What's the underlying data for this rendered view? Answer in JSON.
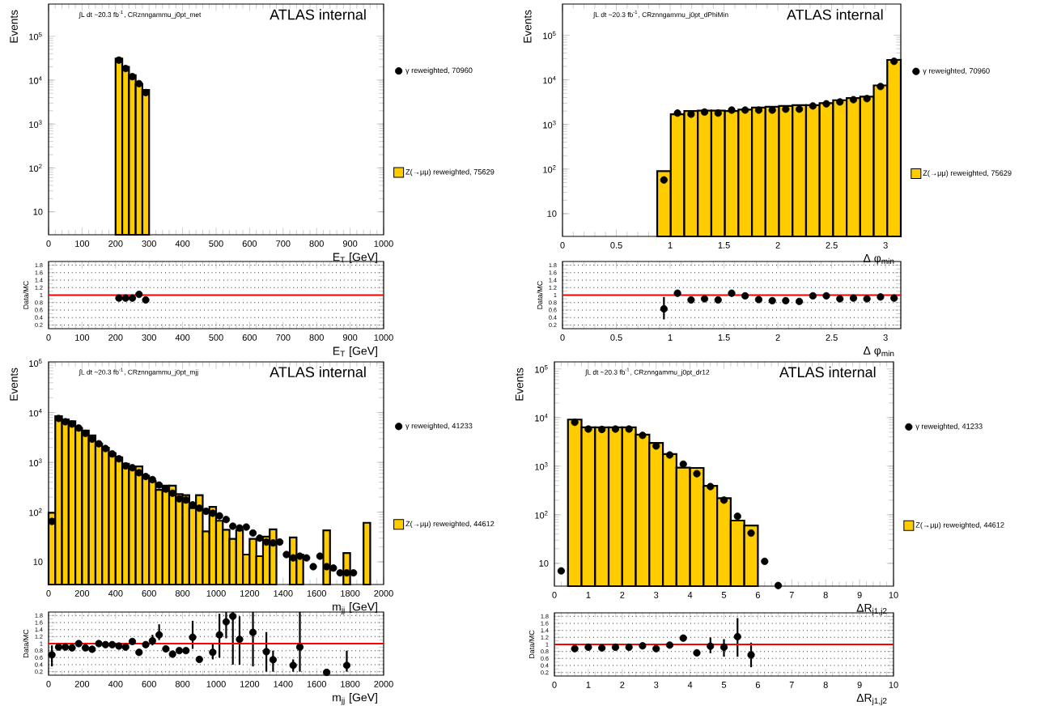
{
  "chart_data": [
    {
      "type": "histogram",
      "annotations": [
        "∫L dt ~20.3 fb$^{-1}$, CRznngammu_j0pt_met",
        "ATLAS internal"
      ],
      "xlabel": "E$_{T}$ [GeV]",
      "ylabel": "Events",
      "log": "y",
      "legend": "right",
      "marker": "circle",
      "xlim": [
        0,
        1000
      ],
      "ylim": [
        3,
        540000
      ],
      "xticks": [
        0,
        100,
        200,
        300,
        400,
        500,
        600,
        700,
        800,
        900,
        1000
      ],
      "yticks": [
        10,
        {
          "value": 100,
          "label": "10$^{2}$"
        },
        {
          "value": 1000,
          "label": "10$^{3}$"
        },
        {
          "value": 10000,
          "label": "10$^{4}$"
        },
        {
          "value": 100000,
          "label": "10$^{5}$"
        }
      ],
      "bins": [
        200,
        220,
        240,
        260,
        280,
        300
      ],
      "series": [
        {
          "type": "histogram",
          "name": "Z(→μμ) reweighted, 75629",
          "color": "#ffcc00",
          "values": [
            31000,
            20000,
            13000,
            8100,
            6000
          ]
        },
        {
          "type": "scatter",
          "name": "γ reweighted, 70960",
          "color": "#000000",
          "x": [
            210,
            230,
            250,
            270,
            290
          ],
          "values": [
            28500,
            18400,
            12000,
            8300,
            5200
          ]
        }
      ]
    },
    {
      "type": "histogram",
      "annotations": [
        "∫L dt ~20.3 fb$^{-1}$, CRznngammu_j0pt_dPhiMin",
        "ATLAS internal"
      ],
      "xlabel": "Δ φ$_{min}$",
      "ylabel": "Events",
      "log": "y",
      "legend": "right",
      "marker": "circle",
      "xlim": [
        0,
        3.1416
      ],
      "ylim": [
        3.1,
        500000
      ],
      "xticks": [
        0,
        0.5,
        1,
        1.5,
        2,
        2.5,
        3
      ],
      "yticks": [
        10,
        {
          "value": 100,
          "label": "10$^{2}$"
        },
        {
          "value": 1000,
          "label": "10$^{3}$"
        },
        {
          "value": 10000,
          "label": "10$^{4}$"
        },
        {
          "value": 100000,
          "label": "10$^{5}$"
        }
      ],
      "bins": [
        0.8796,
        1.0053,
        1.131,
        1.2566,
        1.3823,
        1.508,
        1.6336,
        1.7593,
        1.885,
        2.0106,
        2.1363,
        2.2619,
        2.3876,
        2.5133,
        2.6389,
        2.7646,
        2.8903,
        3.0159,
        3.1416
      ],
      "series": [
        {
          "type": "histogram",
          "name": "Z(→μμ) reweighted, 75629",
          "color": "#ffcc00",
          "values": [
            90,
            1700,
            2000,
            2050,
            2050,
            2000,
            2150,
            2400,
            2500,
            2600,
            2700,
            2700,
            3000,
            3500,
            3900,
            4200,
            7500,
            28000
          ]
        },
        {
          "type": "scatter",
          "name": "γ reweighted, 70960",
          "color": "#000000",
          "x": [
            0.942,
            1.068,
            1.194,
            1.319,
            1.445,
            1.571,
            1.696,
            1.822,
            1.948,
            2.073,
            2.199,
            2.325,
            2.45,
            2.576,
            2.702,
            2.827,
            2.953,
            3.079
          ],
          "values": [
            57,
            1800,
            1700,
            1900,
            1800,
            2100,
            2100,
            2100,
            2100,
            2200,
            2200,
            2600,
            2900,
            3200,
            3600,
            3800,
            7100,
            26000
          ]
        }
      ]
    },
    {
      "type": "scatter",
      "xlabel": "E$_{T}$ [GeV]",
      "ylabel": "Data/MC",
      "marker": "circle",
      "grid": "y",
      "color": "#000000",
      "xlim": [
        0,
        1000
      ],
      "ylim": [
        0.1,
        1.9
      ],
      "xticks": [
        0,
        100,
        200,
        300,
        400,
        500,
        600,
        700,
        800,
        900,
        1000
      ],
      "yticks": [
        0.2,
        0.4,
        0.6,
        0.8,
        1,
        1.2,
        1.4,
        1.6,
        1.8
      ],
      "ref_lines": [
        {
          "axis": "y",
          "value": 1,
          "color": "#ff0000"
        }
      ],
      "x": [
        210,
        230,
        250,
        270,
        290
      ],
      "values": [
        0.92,
        0.92,
        0.92,
        1.02,
        0.87
      ]
    },
    {
      "type": "scatter",
      "xlabel": "Δ φ$_{min}$",
      "ylabel": "Data/MC",
      "marker": "circle",
      "grid": "y",
      "color": "#000000",
      "xlim": [
        0,
        3.1416
      ],
      "ylim": [
        0.1,
        1.9
      ],
      "xticks": [
        0,
        0.5,
        1,
        1.5,
        2,
        2.5,
        3
      ],
      "yticks": [
        0.2,
        0.4,
        0.6,
        0.8,
        1,
        1.2,
        1.4,
        1.6,
        1.8
      ],
      "ref_lines": [
        {
          "axis": "y",
          "value": 1,
          "color": "#ff0000"
        }
      ],
      "x": [
        0.942,
        1.068,
        1.194,
        1.319,
        1.445,
        1.571,
        1.696,
        1.822,
        1.948,
        2.073,
        2.199,
        2.325,
        2.45,
        2.576,
        2.702,
        2.827,
        2.953,
        3.079
      ],
      "values": [
        0.63,
        1.05,
        0.87,
        0.9,
        0.87,
        1.05,
        0.98,
        0.88,
        0.85,
        0.85,
        0.83,
        0.98,
        0.98,
        0.9,
        0.92,
        0.9,
        0.95,
        0.92
      ],
      "errors": [
        [
          0.35,
          0.95
        ],
        null,
        null,
        null,
        null,
        null,
        null,
        null,
        null,
        null,
        null,
        null,
        null,
        null,
        null,
        null,
        null,
        null
      ]
    },
    {
      "type": "histogram",
      "annotations": [
        "∫L dt ~20.3 fb$^{-1}$, CRznngammu_j0pt_mjj",
        "ATLAS internal"
      ],
      "xlabel": "m$_{jj}$ [GeV]",
      "ylabel": "Events",
      "log": "y",
      "legend": "right",
      "marker": "circle",
      "xlim": [
        0,
        2000
      ],
      "ylim": [
        3.5,
        105000
      ],
      "xticks": [
        0,
        200,
        400,
        600,
        800,
        1000,
        1200,
        1400,
        1600,
        1800,
        2000
      ],
      "yticks": [
        10,
        {
          "value": 100,
          "label": "10$^{2}$"
        },
        {
          "value": 1000,
          "label": "10$^{3}$"
        },
        {
          "value": 10000,
          "label": "10$^{4}$"
        },
        {
          "value": 100000,
          "label": "10$^{5}$"
        }
      ],
      "bins": [
        0,
        40,
        80,
        120,
        160,
        200,
        240,
        280,
        320,
        360,
        400,
        440,
        480,
        520,
        560,
        600,
        640,
        680,
        720,
        760,
        800,
        840,
        880,
        920,
        960,
        1000,
        1040,
        1080,
        1120,
        1160,
        1200,
        1240,
        1280,
        1320,
        1360,
        1400,
        1440,
        1480,
        1520,
        1560,
        1600,
        1640,
        1680,
        1720,
        1760,
        1800,
        1840,
        1880,
        1920,
        1960,
        2000
      ],
      "series": [
        {
          "type": "histogram",
          "name": "Z(→μμ) reweighted, 44612",
          "color": "#ffcc00",
          "values": [
            97,
            8500,
            7300,
            6700,
            4900,
            4350,
            3500,
            2370,
            1960,
            1530,
            1270,
            940,
            740,
            830,
            540,
            420,
            280,
            340,
            340,
            230,
            220,
            120,
            220,
            41,
            127,
            67,
            44,
            29,
            43,
            14,
            29,
            13,
            32,
            45,
            null,
            null,
            31,
            14,
            null,
            null,
            null,
            43,
            null,
            null,
            15,
            null,
            null,
            61,
            null,
            null
          ]
        },
        {
          "type": "scatter",
          "name": "γ reweighted, 41233",
          "color": "#000000",
          "x": [
            20,
            60,
            100,
            140,
            180,
            220,
            260,
            300,
            340,
            380,
            420,
            460,
            500,
            540,
            580,
            620,
            660,
            700,
            740,
            780,
            820,
            860,
            900,
            940,
            980,
            1020,
            1060,
            1100,
            1140,
            1180,
            1220,
            1260,
            1300,
            1340,
            1380,
            1420,
            1460,
            1500,
            1540,
            1580,
            1620,
            1660,
            1700,
            1740,
            1780,
            1820
          ],
          "values": [
            65,
            7650,
            6570,
            5900,
            4900,
            3830,
            2940,
            2370,
            1900,
            1480,
            1180,
            850,
            780,
            620,
            520,
            450,
            350,
            290,
            240,
            185,
            175,
            140,
            120,
            104,
            95,
            84,
            71,
            52,
            48,
            50,
            38,
            30,
            25,
            24,
            25,
            14,
            12,
            13,
            12,
            8,
            13,
            8,
            7.5,
            6,
            6,
            6
          ]
        }
      ]
    },
    {
      "type": "histogram",
      "annotations": [
        "∫L dt ~20.3 fb$^{-1}$, CRznngammu_j0pt_dr12",
        "ATLAS internal"
      ],
      "xlabel": "ΔR$_{j1,j2}$",
      "ylabel": "Events",
      "log": "y",
      "legend": "right",
      "marker": "circle",
      "xlim": [
        0,
        10
      ],
      "ylim": [
        3.4,
        140000
      ],
      "xticks": [
        0,
        1,
        2,
        3,
        4,
        5,
        6,
        7,
        8,
        9,
        10
      ],
      "yticks": [
        10,
        {
          "value": 100,
          "label": "10$^{2}$"
        },
        {
          "value": 1000,
          "label": "10$^{3}$"
        },
        {
          "value": 10000,
          "label": "10$^{4}$"
        },
        {
          "value": 100000,
          "label": "10$^{5}$"
        }
      ],
      "bins": [
        0,
        0.4,
        0.8,
        1.2,
        1.6,
        2.0,
        2.4,
        2.8,
        3.2,
        3.6,
        4.0,
        4.4,
        4.8,
        5.2,
        5.6,
        6.0
      ],
      "series": [
        {
          "type": "histogram",
          "name": "Z(→μμ) reweighted, 44612",
          "color": "#ffcc00",
          "values": [
            null,
            9100,
            6300,
            6300,
            6300,
            6300,
            4450,
            3000,
            1780,
            930,
            920,
            395,
            220,
            76,
            60
          ]
        },
        {
          "type": "scatter",
          "name": "γ reweighted, 41233",
          "color": "#000000",
          "x": [
            0.2,
            0.6,
            1.0,
            1.4,
            1.8,
            2.2,
            2.6,
            3.0,
            3.4,
            3.8,
            4.2,
            4.6,
            5.0,
            5.4,
            5.8,
            6.2,
            6.6
          ],
          "values": [
            7,
            8000,
            5800,
            5700,
            5800,
            5800,
            4300,
            2600,
            1700,
            1100,
            700,
            380,
            200,
            93,
            42,
            11,
            3.5
          ]
        }
      ]
    },
    {
      "type": "scatter",
      "xlabel": "m$_{jj}$ [GeV]",
      "ylabel": "Data/MC",
      "marker": "circle",
      "grid": "y",
      "color": "#000000",
      "xlim": [
        0,
        2000
      ],
      "ylim": [
        0.1,
        1.9
      ],
      "xticks": [
        0,
        200,
        400,
        600,
        800,
        1000,
        1200,
        1400,
        1600,
        1800,
        2000
      ],
      "yticks": [
        0.2,
        0.4,
        0.6,
        0.8,
        1,
        1.2,
        1.4,
        1.6,
        1.8
      ],
      "ref_lines": [
        {
          "axis": "y",
          "value": 1,
          "color": "#ff0000"
        }
      ],
      "x": [
        20,
        60,
        100,
        140,
        180,
        220,
        260,
        300,
        340,
        380,
        420,
        460,
        500,
        540,
        580,
        620,
        660,
        700,
        740,
        780,
        820,
        860,
        900,
        980,
        1020,
        1060,
        1100,
        1140,
        1220,
        1300,
        1340,
        1460,
        1500,
        1660,
        1780
      ],
      "values": [
        0.68,
        0.9,
        0.9,
        0.88,
        1.0,
        0.88,
        0.84,
        1.0,
        0.97,
        0.97,
        0.93,
        0.9,
        1.06,
        0.75,
        0.97,
        1.08,
        1.25,
        0.85,
        0.7,
        0.8,
        0.8,
        1.18,
        0.55,
        0.75,
        1.25,
        1.62,
        1.78,
        1.12,
        1.32,
        0.77,
        0.54,
        0.38,
        0.9,
        0.18,
        0.38
      ],
      "errors": [
        [
          0.35,
          0.95
        ],
        null,
        null,
        null,
        null,
        null,
        null,
        null,
        null,
        null,
        null,
        null,
        null,
        null,
        null,
        [
          0.95,
          1.25
        ],
        [
          1.1,
          1.55
        ],
        null,
        null,
        null,
        null,
        [
          0.85,
          1.65
        ],
        null,
        [
          0.55,
          0.98
        ],
        [
          0.6,
          1.85
        ],
        [
          1.15,
          1.9
        ],
        [
          0.4,
          1.9
        ],
        [
          0.4,
          1.78
        ],
        [
          0.35,
          1.9
        ],
        [
          0.2,
          1.33
        ],
        [
          0.2,
          0.8
        ],
        [
          0.2,
          0.55
        ],
        [
          0.2,
          1.9
        ],
        null,
        [
          0.2,
          0.8
        ]
      ]
    },
    {
      "type": "scatter",
      "xlabel": "ΔR$_{j1,j2}$",
      "ylabel": "Data/MC",
      "marker": "circle",
      "grid": "y",
      "color": "#000000",
      "xlim": [
        0,
        10
      ],
      "ylim": [
        0.1,
        1.9
      ],
      "xticks": [
        0,
        1,
        2,
        3,
        4,
        5,
        6,
        7,
        8,
        9,
        10
      ],
      "yticks": [
        0.2,
        0.4,
        0.6,
        0.8,
        1,
        1.2,
        1.4,
        1.6,
        1.8
      ],
      "ref_lines": [
        {
          "axis": "y",
          "value": 1,
          "color": "#ff0000"
        }
      ],
      "x": [
        0.6,
        1.0,
        1.4,
        1.8,
        2.2,
        2.6,
        3.0,
        3.4,
        3.8,
        4.2,
        4.6,
        5.0,
        5.4,
        5.8
      ],
      "values": [
        0.88,
        0.92,
        0.9,
        0.92,
        0.92,
        0.96,
        0.88,
        0.98,
        1.18,
        0.76,
        0.95,
        0.92,
        1.22,
        0.7
      ],
      "errors": [
        null,
        null,
        null,
        null,
        null,
        null,
        null,
        null,
        null,
        null,
        [
          0.75,
          1.2
        ],
        [
          0.65,
          1.15
        ],
        [
          0.65,
          1.75
        ],
        [
          0.35,
          1.05
        ]
      ]
    }
  ]
}
